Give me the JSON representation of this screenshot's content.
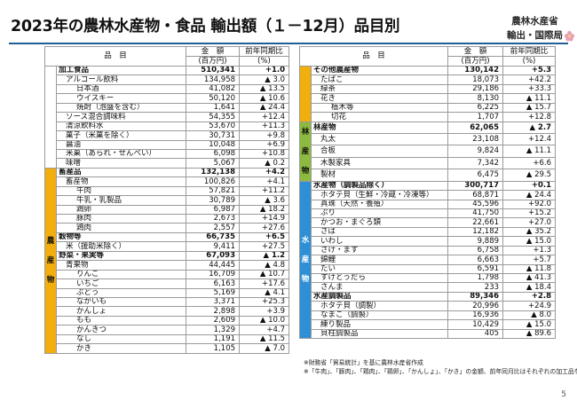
{
  "title": "2023年の農林水産物・食品 輸出額（１－12月）品目別",
  "org": {
    "line1": "農林水産省",
    "line2": "輸出・国際局"
  },
  "headers": {
    "item": "品　目",
    "amount": "金　額",
    "amount_unit": "(百万円)",
    "yoy": "前年同期比",
    "yoy_unit": "(%)"
  },
  "left_table": {
    "groups": [
      {
        "category": "",
        "color": "blank",
        "rows": [
          {
            "name": "加工食品",
            "level": 0,
            "amount": "510,341",
            "yoy": "+1.0",
            "bold": true
          },
          {
            "name": "アルコール飲料",
            "level": 1,
            "amount": "134,958",
            "yoy": "▲ 3.0"
          },
          {
            "name": "日本酒",
            "level": 2,
            "amount": "41,082",
            "yoy": "▲ 13.5"
          },
          {
            "name": "ウイスキー",
            "level": 2,
            "amount": "50,120",
            "yoy": "▲ 10.6"
          },
          {
            "name": "焼酎（泡盛を含む）",
            "level": 2,
            "amount": "1,641",
            "yoy": "▲ 24.4"
          },
          {
            "name": "ソース混合調味料",
            "level": 1,
            "amount": "54,355",
            "yoy": "+12.4"
          },
          {
            "name": "清涼飲料水",
            "level": 1,
            "amount": "53,670",
            "yoy": "+11.3"
          },
          {
            "name": "菓子（米菓を除く）",
            "level": 1,
            "amount": "30,731",
            "yoy": "+9.8"
          },
          {
            "name": "醤油",
            "level": 1,
            "amount": "10,048",
            "yoy": "+6.9"
          },
          {
            "name": "米菓（あられ・せんべい）",
            "level": 1,
            "amount": "6,098",
            "yoy": "+10.8"
          },
          {
            "name": "味噌",
            "level": 1,
            "amount": "5,067",
            "yoy": "▲ 0.2"
          }
        ]
      },
      {
        "category": "農産物",
        "color": "orange",
        "rows": [
          {
            "name": "畜産品",
            "level": 0,
            "amount": "132,138",
            "yoy": "+4.2",
            "bold": true
          },
          {
            "name": "畜産物",
            "level": 1,
            "amount": "100,826",
            "yoy": "+4.1"
          },
          {
            "name": "牛肉",
            "level": 2,
            "amount": "57,821",
            "yoy": "+11.2"
          },
          {
            "name": "牛乳・乳製品",
            "level": 2,
            "amount": "30,789",
            "yoy": "▲ 3.6"
          },
          {
            "name": "鶏卵",
            "level": 2,
            "amount": "6,987",
            "yoy": "▲ 18.2"
          },
          {
            "name": "豚肉",
            "level": 2,
            "amount": "2,673",
            "yoy": "+14.9"
          },
          {
            "name": "鶏肉",
            "level": 2,
            "amount": "2,557",
            "yoy": "+27.6"
          },
          {
            "name": "穀物等",
            "level": 0,
            "amount": "66,735",
            "yoy": "+6.5",
            "bold": true
          },
          {
            "name": "米（援助米除く）",
            "level": 1,
            "amount": "9,411",
            "yoy": "+27.5"
          },
          {
            "name": "野菜・果実等",
            "level": 0,
            "amount": "67,093",
            "yoy": "▲ 1.2",
            "bold": true
          },
          {
            "name": "青果物",
            "level": 1,
            "amount": "44,445",
            "yoy": "▲ 4.8"
          },
          {
            "name": "りんご",
            "level": 2,
            "amount": "16,709",
            "yoy": "▲ 10.7"
          },
          {
            "name": "いちご",
            "level": 2,
            "amount": "6,163",
            "yoy": "+17.6"
          },
          {
            "name": "ぶどう",
            "level": 2,
            "amount": "5,169",
            "yoy": "▲ 4.1"
          },
          {
            "name": "ながいも",
            "level": 2,
            "amount": "3,371",
            "yoy": "+25.3"
          },
          {
            "name": "かんしょ",
            "level": 2,
            "amount": "2,898",
            "yoy": "+3.9"
          },
          {
            "name": "もも",
            "level": 2,
            "amount": "2,609",
            "yoy": "▲ 10.0"
          },
          {
            "name": "かんきつ",
            "level": 2,
            "amount": "1,329",
            "yoy": "+4.7"
          },
          {
            "name": "なし",
            "level": 2,
            "amount": "1,191",
            "yoy": "▲ 11.5"
          },
          {
            "name": "かき",
            "level": 2,
            "amount": "1,105",
            "yoy": "▲ 7.0"
          }
        ]
      }
    ]
  },
  "right_table": {
    "groups": [
      {
        "category": "",
        "color": "orange",
        "rows": [
          {
            "name": "その他農産物",
            "level": 0,
            "amount": "130,142",
            "yoy": "+5.3",
            "bold": true
          },
          {
            "name": "たばこ",
            "level": 1,
            "amount": "18,073",
            "yoy": "+42.2"
          },
          {
            "name": "緑茶",
            "level": 1,
            "amount": "29,186",
            "yoy": "+33.3"
          },
          {
            "name": "花き",
            "level": 1,
            "amount": "8,130",
            "yoy": "▲ 11.1"
          },
          {
            "name": "植木等",
            "level": 2,
            "amount": "6,225",
            "yoy": "▲ 15.7"
          },
          {
            "name": "切花",
            "level": 2,
            "amount": "1,707",
            "yoy": "+12.8"
          }
        ]
      },
      {
        "category": "林産物",
        "color": "green",
        "rows": [
          {
            "name": "林産物",
            "level": 0,
            "amount": "62,065",
            "yoy": "▲ 2.7",
            "bold": true
          },
          {
            "name": "丸太",
            "level": 1,
            "amount": "23,108",
            "yoy": "+12.4"
          },
          {
            "name": "合板",
            "level": 1,
            "amount": "9,824",
            "yoy": "▲ 11.1"
          },
          {
            "name": "木製家具",
            "level": 1,
            "amount": "7,342",
            "yoy": "+6.6"
          },
          {
            "name": "製材",
            "level": 1,
            "amount": "6,475",
            "yoy": "▲ 29.5"
          }
        ]
      },
      {
        "category": "水産物",
        "color": "blue",
        "rows": [
          {
            "name": "水産物（調製品除く）",
            "level": 0,
            "amount": "300,717",
            "yoy": "+0.1",
            "bold": true
          },
          {
            "name": "ホタテ貝（生鮮・冷蔵・冷凍等）",
            "level": 1,
            "amount": "68,871",
            "yoy": "▲ 24.4"
          },
          {
            "name": "真珠（天然・養殖）",
            "level": 1,
            "amount": "45,596",
            "yoy": "+92.0"
          },
          {
            "name": "ぶり",
            "level": 1,
            "amount": "41,750",
            "yoy": "+15.2"
          },
          {
            "name": "かつお・まぐろ類",
            "level": 1,
            "amount": "22,661",
            "yoy": "+27.0"
          },
          {
            "name": "さば",
            "level": 1,
            "amount": "12,182",
            "yoy": "▲ 35.2"
          },
          {
            "name": "いわし",
            "level": 1,
            "amount": "9,889",
            "yoy": "▲ 15.0"
          },
          {
            "name": "さけ・ます",
            "level": 1,
            "amount": "6,758",
            "yoy": "+1.3"
          },
          {
            "name": "錦鯉",
            "level": 1,
            "amount": "6,663",
            "yoy": "+5.7"
          },
          {
            "name": "たい",
            "level": 1,
            "amount": "6,591",
            "yoy": "▲ 11.8"
          },
          {
            "name": "すけとうだら",
            "level": 1,
            "amount": "1,798",
            "yoy": "▲ 41.3"
          },
          {
            "name": "さんま",
            "level": 1,
            "amount": "233",
            "yoy": "▲ 18.4"
          },
          {
            "name": "水産調製品",
            "level": 0,
            "amount": "89,346",
            "yoy": "+2.8",
            "bold": true
          },
          {
            "name": "ホタテ貝（調製）",
            "level": 1,
            "amount": "20,996",
            "yoy": "+24.9"
          },
          {
            "name": "なまこ（調製）",
            "level": 1,
            "amount": "16,936",
            "yoy": "▲ 8.0"
          },
          {
            "name": "練り製品",
            "level": 1,
            "amount": "10,429",
            "yoy": "▲ 15.0"
          },
          {
            "name": "貝柱調製品",
            "level": 1,
            "amount": "405",
            "yoy": "▲ 89.6"
          }
        ]
      }
    ]
  },
  "notes": [
    "※財務省「貿易統計」を基に農林水産省作成",
    "※「牛肉」、「豚肉」、「鶏肉」、「鶏卵」、「かんしょ」、「かき」の金額、前年同月比はそれぞれの加工品を含む。"
  ],
  "page_number": "5",
  "colors": {
    "orange": "#f2ae0c",
    "green": "#8cb93f",
    "blue": "#2f8fd6",
    "rule": "#1f5f96"
  }
}
